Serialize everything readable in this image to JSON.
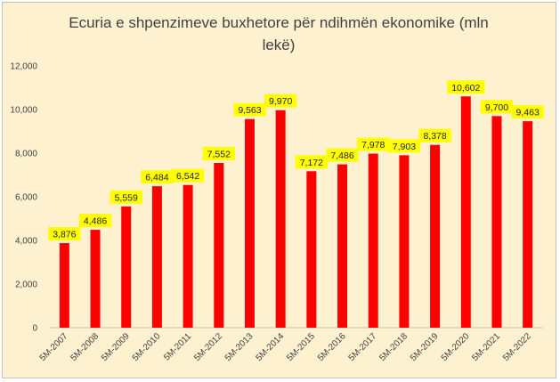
{
  "chart_data": {
    "type": "bar",
    "title": "Ecuria e shpenzimeve buxhetore për ndihmën ekonomike (mln lekë)",
    "xlabel": "",
    "ylabel": "",
    "categories": [
      "5M-2007",
      "5M-2008",
      "5M-2009",
      "5M-2010",
      "5M-2011",
      "5M-2012",
      "5M-2013",
      "5M-2014",
      "5M-2015",
      "5M-2016",
      "5M-2017",
      "5M-2018",
      "5M-2019",
      "5M-2020",
      "5M-2021",
      "5M-2022"
    ],
    "values": [
      3876,
      4486,
      5559,
      6484,
      6542,
      7552,
      9563,
      9970,
      7172,
      7486,
      7978,
      7903,
      8378,
      10602,
      9700,
      9463
    ],
    "value_labels": [
      "3,876",
      "4,486",
      "5,559",
      "6,484",
      "6,542",
      "7,552",
      "9,563",
      "9,970",
      "7,172",
      "7,486",
      "7,978",
      "7,903",
      "8,378",
      "10,602",
      "9,700",
      "9,463"
    ],
    "yticks": [
      0,
      2000,
      4000,
      6000,
      8000,
      10000,
      12000
    ],
    "ytick_labels": [
      "0",
      "2,000",
      "4,000",
      "6,000",
      "8,000",
      "10,000",
      "12,000"
    ],
    "ylim": [
      0,
      12000
    ],
    "grid": false,
    "legend": "none",
    "colors": {
      "bar": "#ff0000",
      "label_bg": "#ffff00",
      "background": "#fdf1d0"
    }
  }
}
